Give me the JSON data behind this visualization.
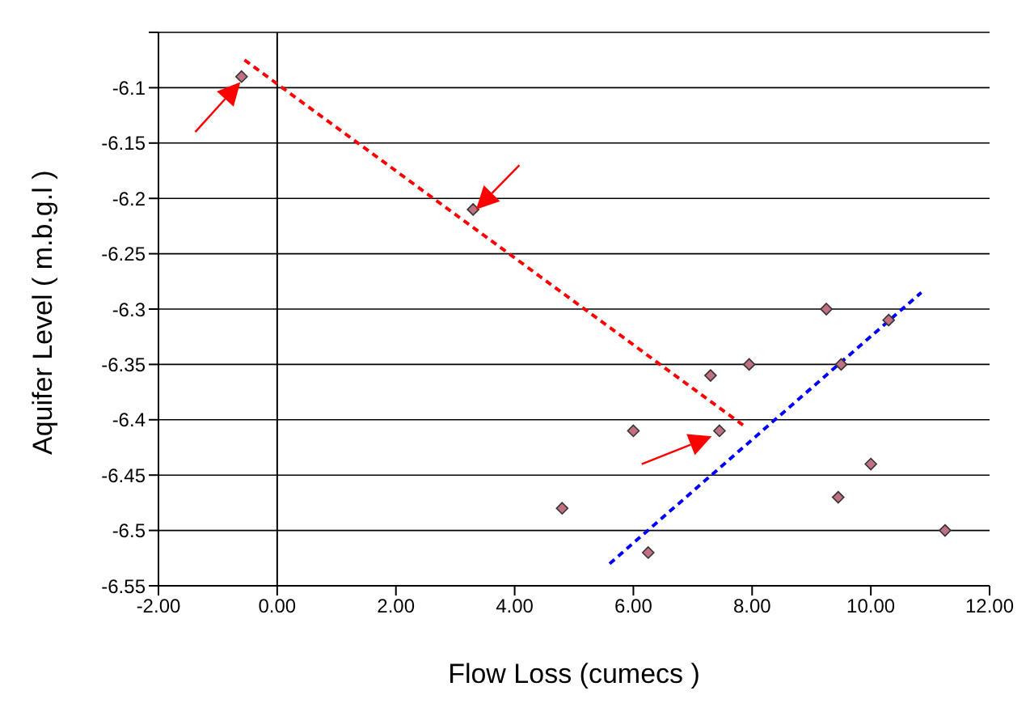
{
  "chart_data": {
    "type": "scatter",
    "xlabel": "Flow Loss (cumecs )",
    "ylabel": "Aquifer Level ( m.b.g.l )",
    "xlim": [
      -2,
      12
    ],
    "xticks": [
      {
        "value": -2,
        "label": "-2.00"
      },
      {
        "value": 0,
        "label": "0.00"
      },
      {
        "value": 2,
        "label": "2.00"
      },
      {
        "value": 4,
        "label": "4.00"
      },
      {
        "value": 6,
        "label": "6.00"
      },
      {
        "value": 8,
        "label": "8.00"
      },
      {
        "value": 10,
        "label": "10.00"
      },
      {
        "value": 12,
        "label": "12.00"
      }
    ],
    "ylim": [
      -6.55,
      -6.05
    ],
    "yticks": [
      -6.55,
      -6.5,
      -6.45,
      -6.4,
      -6.35,
      -6.3,
      -6.25,
      -6.2,
      -6.15,
      -6.1,
      {
        "value": -6.05,
        "label": null
      }
    ],
    "grid": "y",
    "legend": false,
    "marker": "diamond",
    "ref_lines": [
      {
        "axis": "x",
        "value": 0,
        "color": "#000000"
      }
    ],
    "series": [
      {
        "color": "#c07080",
        "x": [
          -0.6,
          3.3,
          4.8,
          6.0,
          6.25,
          7.3,
          7.45,
          7.95,
          9.25,
          9.5,
          9.45,
          10.0,
          10.3,
          11.25
        ],
        "values": [
          -6.09,
          -6.21,
          -6.48,
          -6.41,
          -6.52,
          -6.36,
          -6.41,
          -6.35,
          -6.3,
          -6.35,
          -6.47,
          -6.44,
          -6.31,
          -6.5
        ]
      },
      {
        "type": "line",
        "color": "#ff0000",
        "line_style": "dashed",
        "marker": "none",
        "x": [
          -0.55,
          7.85
        ],
        "values": [
          -6.075,
          -6.405
        ]
      },
      {
        "type": "line",
        "color": "#0000ff",
        "line_style": "dashed",
        "marker": "none",
        "x": [
          5.6,
          10.85
        ],
        "values": [
          -6.53,
          -6.285
        ]
      }
    ]
  }
}
